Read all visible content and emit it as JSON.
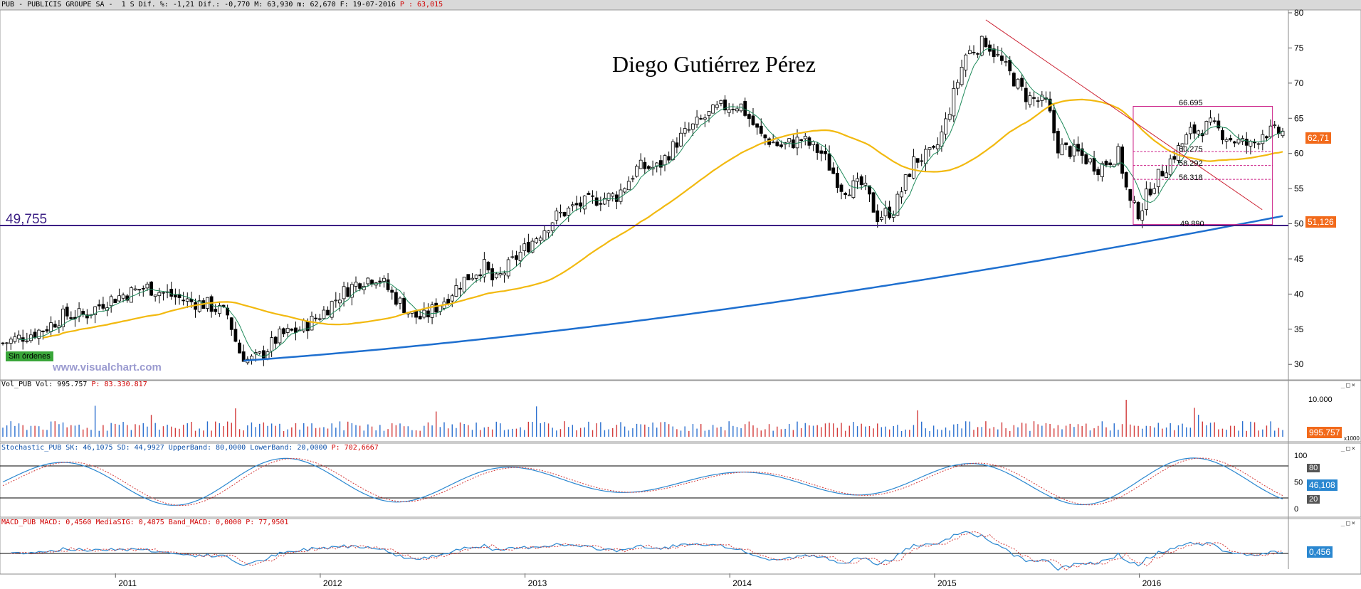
{
  "header": {
    "text": "PUB - PUBLICIS GROUPE SA -  1 S Dif. %: -1,21 Dif.: -0,770 M: 63,930 m: 62,670 F: 19-07-2016 ",
    "price_label": "P : 63,015"
  },
  "author": "Diego Gutiérrez Pérez",
  "watermark": "www.visualchart.com",
  "orders_badge": "Sin órdenes",
  "support_label": "49,755",
  "panels": {
    "volume_title": "Vol_PUB Vol: 995.757",
    "volume_p": "P: 83.330.817",
    "stoch_title": "Stochastic_PUB SK: 46,1075 SD: 44,9927 UpperBand: 80,0000 LowerBand: 20,0000",
    "stoch_p": "P: 702,6667",
    "macd_title": "MACD_PUB MACD: 0,4560 MediaSIG: 0,4875 Band_MACD: 0,0000",
    "macd_p": "P: 77,9501"
  },
  "window_buttons": "_□×",
  "tags": {
    "price": "62,71",
    "ma200": "51,126",
    "volume": "995.757",
    "volume_tick": "10.000",
    "volume_scale": "x1000",
    "stoch": "46,108",
    "stoch_80": "80",
    "stoch_20": "20",
    "macd": "0,456"
  },
  "box_levels": [
    "66.695",
    "60.275",
    "58.292",
    "56.318",
    "49.890"
  ],
  "chart_data": {
    "type": "candlestick",
    "x_labels": [
      "2011",
      "2012",
      "2013",
      "2014",
      "2015",
      "2016"
    ],
    "y_ticks": [
      30,
      35,
      40,
      45,
      50,
      55,
      60,
      65,
      70,
      75,
      80
    ],
    "ylim": [
      28,
      80
    ],
    "price_weekly_approx": [
      [
        2010.45,
        33
      ],
      [
        2010.55,
        34
      ],
      [
        2010.65,
        35
      ],
      [
        2010.75,
        37
      ],
      [
        2010.85,
        37
      ],
      [
        2010.95,
        39
      ],
      [
        2011.05,
        40
      ],
      [
        2011.15,
        41
      ],
      [
        2011.25,
        40
      ],
      [
        2011.35,
        39
      ],
      [
        2011.45,
        38.5
      ],
      [
        2011.55,
        37
      ],
      [
        2011.6,
        32
      ],
      [
        2011.65,
        30.5
      ],
      [
        2011.7,
        31
      ],
      [
        2011.8,
        34
      ],
      [
        2011.9,
        35
      ],
      [
        2012.0,
        37
      ],
      [
        2012.1,
        40
      ],
      [
        2012.2,
        42
      ],
      [
        2012.28,
        42.5
      ],
      [
        2012.35,
        40
      ],
      [
        2012.45,
        37
      ],
      [
        2012.5,
        36.5
      ],
      [
        2012.6,
        39
      ],
      [
        2012.7,
        42
      ],
      [
        2012.8,
        44
      ],
      [
        2012.85,
        41.5
      ],
      [
        2012.95,
        45
      ],
      [
        2013.05,
        48
      ],
      [
        2013.15,
        51
      ],
      [
        2013.25,
        52.5
      ],
      [
        2013.35,
        53.5
      ],
      [
        2013.45,
        54
      ],
      [
        2013.55,
        58
      ],
      [
        2013.65,
        58
      ],
      [
        2013.75,
        62
      ],
      [
        2013.85,
        64.5
      ],
      [
        2013.95,
        66.5
      ],
      [
        2014.05,
        67
      ],
      [
        2014.15,
        62.5
      ],
      [
        2014.25,
        61
      ],
      [
        2014.35,
        62
      ],
      [
        2014.45,
        60
      ],
      [
        2014.55,
        55
      ],
      [
        2014.65,
        55.5
      ],
      [
        2014.72,
        51
      ],
      [
        2014.8,
        52
      ],
      [
        2014.9,
        59
      ],
      [
        2015.0,
        60
      ],
      [
        2015.05,
        64
      ],
      [
        2015.15,
        74
      ],
      [
        2015.25,
        76
      ],
      [
        2015.35,
        72
      ],
      [
        2015.45,
        68
      ],
      [
        2015.55,
        67
      ],
      [
        2015.6,
        61
      ],
      [
        2015.7,
        60
      ],
      [
        2015.8,
        58
      ],
      [
        2015.9,
        60
      ],
      [
        2015.95,
        53
      ],
      [
        2016.0,
        51.5
      ],
      [
        2016.05,
        55
      ],
      [
        2016.15,
        59
      ],
      [
        2016.25,
        63
      ],
      [
        2016.35,
        64
      ],
      [
        2016.45,
        62
      ],
      [
        2016.55,
        61
      ],
      [
        2016.6,
        63
      ]
    ],
    "ma_short_color": "#1e8a5a",
    "ma_mid_color": "#f2b90f",
    "ma_long_color": "#1e6fcf",
    "support_level": 49.755,
    "resistance_box": {
      "top": 66.695,
      "bottom": 49.89
    }
  }
}
